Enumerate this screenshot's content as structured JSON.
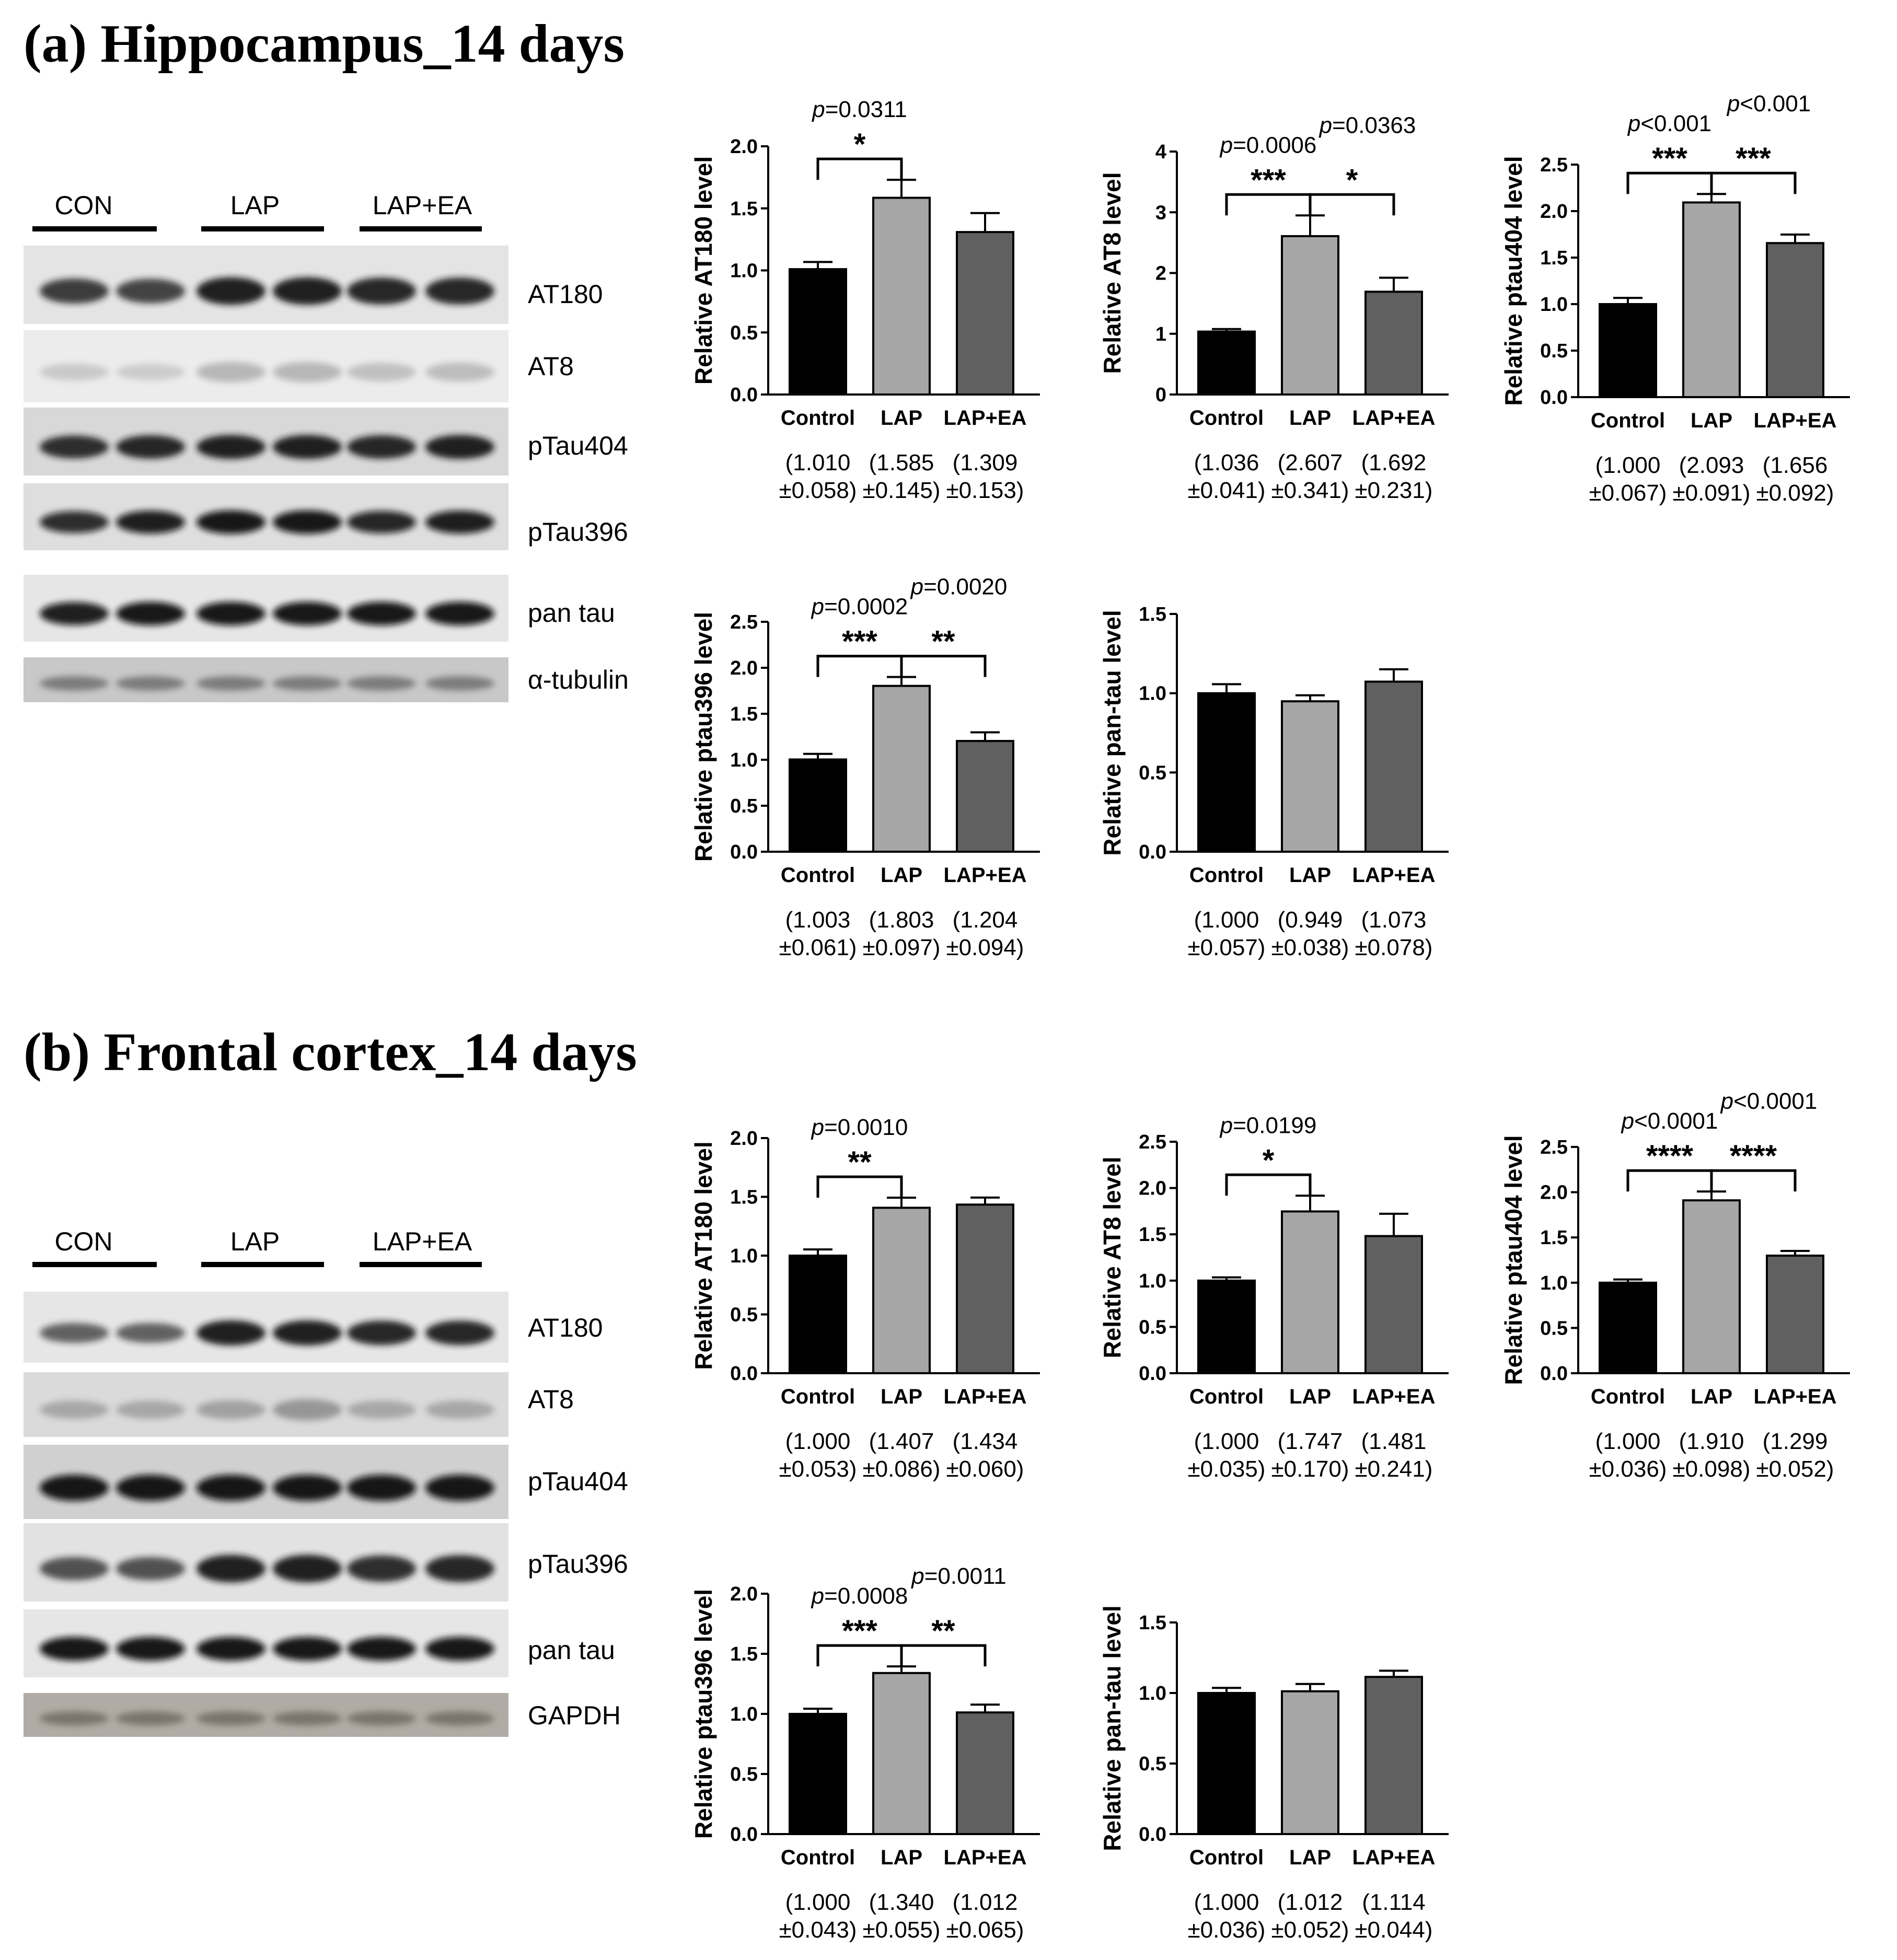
{
  "sections": [
    {
      "title": "(a) Hippocampus_14 days",
      "blot": {
        "groups": [
          "CON",
          "LAP",
          "LAP+EA"
        ],
        "rows": [
          "AT180",
          "AT8",
          "pTau404",
          "pTau396",
          "pan tau",
          "α-tubulin"
        ]
      }
    },
    {
      "title": "(b) Frontal cortex_14 days",
      "blot": {
        "groups": [
          "CON",
          "LAP",
          "LAP+EA"
        ],
        "rows": [
          "AT180",
          "AT8",
          "pTau404",
          "pTau396",
          "pan tau",
          "GAPDH"
        ]
      }
    }
  ],
  "colors": {
    "control": "#000000",
    "lap": "#a6a6a6",
    "lap_ea": "#606060"
  },
  "chart_data": [
    {
      "type": "bar",
      "section": "a",
      "ylabel": "Relative AT180 level",
      "categories": [
        "Control",
        "LAP",
        "LAP+EA"
      ],
      "values": [
        1.01,
        1.585,
        1.309
      ],
      "errors": [
        0.058,
        0.145,
        0.153
      ],
      "ylim": [
        0,
        2.0
      ],
      "yticks": [
        "0.0",
        "0.5",
        "1.0",
        "1.5",
        "2.0"
      ],
      "value_labels": [
        [
          "(1.010",
          "±0.058)"
        ],
        [
          "(1.585",
          "±0.145)"
        ],
        [
          "(1.309",
          "±0.153)"
        ]
      ],
      "comparisons": [
        {
          "from": 0,
          "to": 1,
          "p": "=0.0311",
          "stars": "*"
        }
      ]
    },
    {
      "type": "bar",
      "section": "a",
      "ylabel": "Relative AT8 level",
      "categories": [
        "Control",
        "LAP",
        "LAP+EA"
      ],
      "values": [
        1.036,
        2.607,
        1.692
      ],
      "errors": [
        0.041,
        0.341,
        0.231
      ],
      "ylim": [
        0,
        4
      ],
      "yticks": [
        "0",
        "1",
        "2",
        "3",
        "4"
      ],
      "value_labels": [
        [
          "(1.036",
          "±0.041)"
        ],
        [
          "(2.607",
          "±0.341)"
        ],
        [
          "(1.692",
          "±0.231)"
        ]
      ],
      "comparisons": [
        {
          "from": 0,
          "to": 1,
          "p": "=0.0006",
          "stars": "***"
        },
        {
          "from": 1,
          "to": 2,
          "p": "=0.0363",
          "stars": "*"
        }
      ]
    },
    {
      "type": "bar",
      "section": "a",
      "ylabel": "Relative ptau404 level",
      "categories": [
        "Control",
        "LAP",
        "LAP+EA"
      ],
      "values": [
        1.0,
        2.093,
        1.656
      ],
      "errors": [
        0.067,
        0.091,
        0.092
      ],
      "ylim": [
        0,
        2.5
      ],
      "yticks": [
        "0.0",
        "0.5",
        "1.0",
        "1.5",
        "2.0",
        "2.5"
      ],
      "value_labels": [
        [
          "(1.000",
          "±0.067)"
        ],
        [
          "(2.093",
          "±0.091)"
        ],
        [
          "(1.656",
          "±0.092)"
        ]
      ],
      "comparisons": [
        {
          "from": 0,
          "to": 1,
          "p": "<0.001",
          "stars": "***"
        },
        {
          "from": 1,
          "to": 2,
          "p": "<0.001",
          "stars": "***"
        }
      ]
    },
    {
      "type": "bar",
      "section": "a",
      "ylabel": "Relative ptau396 level",
      "categories": [
        "Control",
        "LAP",
        "LAP+EA"
      ],
      "values": [
        1.003,
        1.803,
        1.204
      ],
      "errors": [
        0.061,
        0.097,
        0.094
      ],
      "ylim": [
        0,
        2.5
      ],
      "yticks": [
        "0.0",
        "0.5",
        "1.0",
        "1.5",
        "2.0",
        "2.5"
      ],
      "value_labels": [
        [
          "(1.003",
          "±0.061)"
        ],
        [
          "(1.803",
          "±0.097)"
        ],
        [
          "(1.204",
          "±0.094)"
        ]
      ],
      "comparisons": [
        {
          "from": 0,
          "to": 1,
          "p": "=0.0002",
          "stars": "***"
        },
        {
          "from": 1,
          "to": 2,
          "p": "=0.0020",
          "stars": "**"
        }
      ]
    },
    {
      "type": "bar",
      "section": "a",
      "ylabel": "Relative pan-tau level",
      "categories": [
        "Control",
        "LAP",
        "LAP+EA"
      ],
      "values": [
        1.0,
        0.949,
        1.073
      ],
      "errors": [
        0.057,
        0.038,
        0.078
      ],
      "ylim": [
        0,
        1.5
      ],
      "yticks": [
        "0.0",
        "0.5",
        "1.0",
        "1.5"
      ],
      "value_labels": [
        [
          "(1.000",
          "±0.057)"
        ],
        [
          "(0.949",
          "±0.038)"
        ],
        [
          "(1.073",
          "±0.078)"
        ]
      ],
      "comparisons": []
    },
    {
      "type": "bar",
      "section": "b",
      "ylabel": "Relative AT180 level",
      "categories": [
        "Control",
        "LAP",
        "LAP+EA"
      ],
      "values": [
        1.0,
        1.407,
        1.434
      ],
      "errors": [
        0.053,
        0.086,
        0.06
      ],
      "ylim": [
        0,
        2.0
      ],
      "yticks": [
        "0.0",
        "0.5",
        "1.0",
        "1.5",
        "2.0"
      ],
      "value_labels": [
        [
          "(1.000",
          "±0.053)"
        ],
        [
          "(1.407",
          "±0.086)"
        ],
        [
          "(1.434",
          "±0.060)"
        ]
      ],
      "comparisons": [
        {
          "from": 0,
          "to": 1,
          "p": "=0.0010",
          "stars": "**"
        }
      ]
    },
    {
      "type": "bar",
      "section": "b",
      "ylabel": "Relative AT8 level",
      "categories": [
        "Control",
        "LAP",
        "LAP+EA"
      ],
      "values": [
        1.0,
        1.747,
        1.481
      ],
      "errors": [
        0.035,
        0.17,
        0.241
      ],
      "ylim": [
        0,
        2.5
      ],
      "yticks": [
        "0.0",
        "0.5",
        "1.0",
        "1.5",
        "2.0",
        "2.5"
      ],
      "value_labels": [
        [
          "(1.000",
          "±0.035)"
        ],
        [
          "(1.747",
          "±0.170)"
        ],
        [
          "(1.481",
          "±0.241)"
        ]
      ],
      "comparisons": [
        {
          "from": 0,
          "to": 1,
          "p": "=0.0199",
          "stars": "*"
        }
      ]
    },
    {
      "type": "bar",
      "section": "b",
      "ylabel": "Relative ptau404 level",
      "categories": [
        "Control",
        "LAP",
        "LAP+EA"
      ],
      "values": [
        1.0,
        1.91,
        1.299
      ],
      "errors": [
        0.036,
        0.098,
        0.052
      ],
      "ylim": [
        0,
        2.5
      ],
      "yticks": [
        "0.0",
        "0.5",
        "1.0",
        "1.5",
        "2.0",
        "2.5"
      ],
      "value_labels": [
        [
          "(1.000",
          "±0.036)"
        ],
        [
          "(1.910",
          "±0.098)"
        ],
        [
          "(1.299",
          "±0.052)"
        ]
      ],
      "comparisons": [
        {
          "from": 0,
          "to": 1,
          "p": "<0.0001",
          "stars": "****"
        },
        {
          "from": 1,
          "to": 2,
          "p": "<0.0001",
          "stars": "****"
        }
      ]
    },
    {
      "type": "bar",
      "section": "b",
      "ylabel": "Relative ptau396 level",
      "categories": [
        "Control",
        "LAP",
        "LAP+EA"
      ],
      "values": [
        1.0,
        1.34,
        1.012
      ],
      "errors": [
        0.043,
        0.055,
        0.065
      ],
      "ylim": [
        0,
        2.0
      ],
      "yticks": [
        "0.0",
        "0.5",
        "1.0",
        "1.5",
        "2.0"
      ],
      "value_labels": [
        [
          "(1.000",
          "±0.043)"
        ],
        [
          "(1.340",
          "±0.055)"
        ],
        [
          "(1.012",
          "±0.065)"
        ]
      ],
      "comparisons": [
        {
          "from": 0,
          "to": 1,
          "p": "=0.0008",
          "stars": "***"
        },
        {
          "from": 1,
          "to": 2,
          "p": "=0.0011",
          "stars": "**"
        }
      ]
    },
    {
      "type": "bar",
      "section": "b",
      "ylabel": "Relative pan-tau level",
      "categories": [
        "Control",
        "LAP",
        "LAP+EA"
      ],
      "values": [
        1.0,
        1.012,
        1.114
      ],
      "errors": [
        0.036,
        0.052,
        0.044
      ],
      "ylim": [
        0,
        1.5
      ],
      "yticks": [
        "0.0",
        "0.5",
        "1.0",
        "1.5"
      ],
      "value_labels": [
        [
          "(1.000",
          "±0.036)"
        ],
        [
          "(1.012",
          "±0.052)"
        ],
        [
          "(1.114",
          "±0.044)"
        ]
      ],
      "comparisons": []
    }
  ]
}
